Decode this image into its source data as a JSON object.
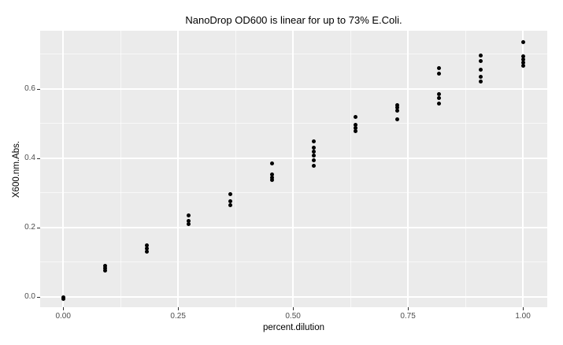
{
  "chart_data": {
    "type": "scatter",
    "title": "NanoDrop OD600 is linear for up to 73% E.Coli.",
    "xlabel": "percent.dilution",
    "ylabel": "X600.nm.Abs.",
    "x_ticks": [
      {
        "label": "0.00",
        "value": 0.0
      },
      {
        "label": "0.25",
        "value": 0.25
      },
      {
        "label": "0.50",
        "value": 0.5
      },
      {
        "label": "0.75",
        "value": 0.75
      },
      {
        "label": "1.00",
        "value": 1.0
      }
    ],
    "y_ticks": [
      {
        "label": "0.0",
        "value": 0.0
      },
      {
        "label": "0.2",
        "value": 0.2
      },
      {
        "label": "0.4",
        "value": 0.4
      },
      {
        "label": "0.6",
        "value": 0.6
      }
    ],
    "x_minor_gridlines": [
      0.125,
      0.375,
      0.625,
      0.875
    ],
    "y_minor_gridlines": [
      0.1,
      0.3,
      0.5,
      0.7
    ],
    "xlim": [
      -0.05,
      1.053
    ],
    "ylim": [
      -0.0295,
      0.7675
    ],
    "grid": true,
    "legend": false,
    "panel_background": "#EBEBEB",
    "gridline_color": "#FFFFFF",
    "point_color": "#000000",
    "tick_label_color": "#4D4D4D",
    "points": [
      {
        "x": 0.0,
        "y": 0.0
      },
      {
        "x": 0.0,
        "y": -0.005
      },
      {
        "x": 0.091,
        "y": 0.09
      },
      {
        "x": 0.091,
        "y": 0.082
      },
      {
        "x": 0.091,
        "y": 0.075
      },
      {
        "x": 0.182,
        "y": 0.148
      },
      {
        "x": 0.182,
        "y": 0.14
      },
      {
        "x": 0.182,
        "y": 0.131
      },
      {
        "x": 0.273,
        "y": 0.235
      },
      {
        "x": 0.273,
        "y": 0.22
      },
      {
        "x": 0.273,
        "y": 0.21
      },
      {
        "x": 0.364,
        "y": 0.297
      },
      {
        "x": 0.364,
        "y": 0.275
      },
      {
        "x": 0.364,
        "y": 0.264
      },
      {
        "x": 0.455,
        "y": 0.386
      },
      {
        "x": 0.455,
        "y": 0.352
      },
      {
        "x": 0.455,
        "y": 0.345
      },
      {
        "x": 0.455,
        "y": 0.338
      },
      {
        "x": 0.545,
        "y": 0.448
      },
      {
        "x": 0.545,
        "y": 0.43
      },
      {
        "x": 0.545,
        "y": 0.418
      },
      {
        "x": 0.545,
        "y": 0.407
      },
      {
        "x": 0.545,
        "y": 0.395
      },
      {
        "x": 0.545,
        "y": 0.377
      },
      {
        "x": 0.636,
        "y": 0.518
      },
      {
        "x": 0.636,
        "y": 0.497
      },
      {
        "x": 0.636,
        "y": 0.487
      },
      {
        "x": 0.636,
        "y": 0.479
      },
      {
        "x": 0.727,
        "y": 0.553
      },
      {
        "x": 0.727,
        "y": 0.545
      },
      {
        "x": 0.727,
        "y": 0.537
      },
      {
        "x": 0.727,
        "y": 0.511
      },
      {
        "x": 0.818,
        "y": 0.659
      },
      {
        "x": 0.818,
        "y": 0.643
      },
      {
        "x": 0.818,
        "y": 0.584
      },
      {
        "x": 0.818,
        "y": 0.573
      },
      {
        "x": 0.818,
        "y": 0.557
      },
      {
        "x": 0.909,
        "y": 0.695
      },
      {
        "x": 0.909,
        "y": 0.68
      },
      {
        "x": 0.909,
        "y": 0.655
      },
      {
        "x": 0.909,
        "y": 0.635
      },
      {
        "x": 0.909,
        "y": 0.62
      },
      {
        "x": 1.0,
        "y": 0.735
      },
      {
        "x": 1.0,
        "y": 0.693
      },
      {
        "x": 1.0,
        "y": 0.684
      },
      {
        "x": 1.0,
        "y": 0.675
      },
      {
        "x": 1.0,
        "y": 0.667
      }
    ]
  }
}
